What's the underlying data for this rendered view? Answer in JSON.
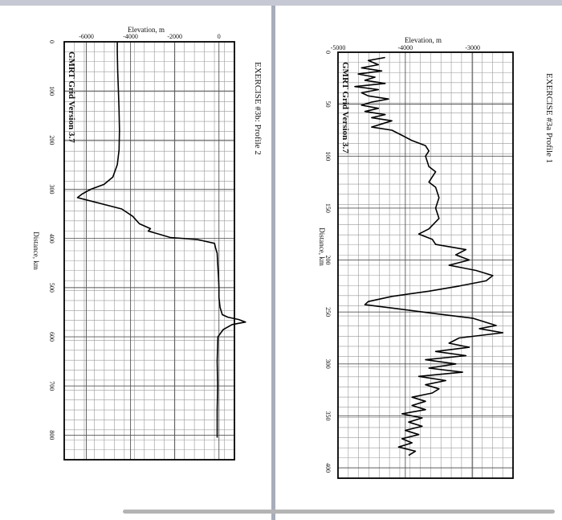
{
  "chart_data": [
    {
      "type": "line",
      "title": "EXERCISE #3b: Profile 2",
      "brand": "GMRT Grid Version 3.7",
      "xlabel": "Distance, km",
      "ylabel": "Elevation, m",
      "xlim": [
        0,
        850
      ],
      "ylim": [
        -7000,
        700
      ],
      "x_ticks": [
        "0",
        "100",
        "200",
        "300",
        "400",
        "500",
        "600",
        "700",
        "800"
      ],
      "y_ticks": [
        "-6000",
        "-4000",
        "-2000",
        "0"
      ],
      "grid": true,
      "series": [
        {
          "x": [
            0,
            20,
            60,
            100,
            140,
            180,
            220,
            250,
            275,
            290,
            300,
            310,
            317,
            325,
            340,
            355,
            370,
            380,
            385,
            390,
            398,
            402,
            410,
            420,
            430,
            450,
            480,
            500,
            520,
            540,
            555,
            560,
            565,
            570,
            575,
            585,
            600,
            650,
            700,
            750,
            805
          ],
          "y": [
            -4600,
            -4600,
            -4580,
            -4550,
            -4520,
            -4500,
            -4520,
            -4600,
            -4800,
            -5200,
            -5800,
            -6200,
            -6400,
            -5700,
            -4400,
            -3900,
            -3600,
            -3100,
            -3200,
            -2800,
            -2200,
            -1000,
            -200,
            -150,
            -80,
            -60,
            -20,
            0,
            0,
            50,
            150,
            400,
            900,
            1200,
            600,
            200,
            -50,
            -80,
            -60,
            -80,
            -80
          ]
        }
      ]
    },
    {
      "type": "line",
      "title": "EXERCISE #3a  Profile 1",
      "brand": "GMRT Grid Version 3.7",
      "xlabel": "Distance, km",
      "ylabel": "Elevation, m",
      "xlim": [
        0,
        410
      ],
      "ylim": [
        -5000,
        -2400
      ],
      "x_ticks": [
        "0",
        "50",
        "100",
        "150",
        "200",
        "250",
        "300",
        "350",
        "400"
      ],
      "y_ticks": [
        "-5000",
        "-4000",
        "-3000"
      ],
      "grid": true,
      "series": [
        {
          "x": [
            5,
            8,
            12,
            15,
            18,
            21,
            24,
            27,
            30,
            33,
            36,
            39,
            42,
            45,
            48,
            51,
            54,
            57,
            60,
            63,
            66,
            69,
            72,
            75,
            80,
            85,
            90,
            95,
            100,
            110,
            115,
            125,
            130,
            140,
            150,
            160,
            170,
            175,
            180,
            185,
            190,
            195,
            200,
            205,
            210,
            215,
            220,
            225,
            230,
            235,
            240,
            243,
            247,
            252,
            256,
            260,
            263,
            266,
            270,
            275,
            280,
            284,
            288,
            292,
            296,
            300,
            304,
            308,
            312,
            316,
            320,
            324,
            328,
            332,
            336,
            340,
            344,
            348,
            352,
            356,
            360,
            364,
            368,
            372,
            376,
            380,
            384,
            388
          ],
          "y": [
            -4300,
            -4550,
            -4400,
            -4650,
            -4350,
            -4700,
            -4450,
            -4600,
            -4300,
            -4750,
            -4400,
            -4650,
            -4550,
            -4250,
            -4500,
            -4650,
            -4400,
            -4600,
            -4300,
            -4500,
            -4200,
            -4350,
            -4500,
            -4200,
            -4050,
            -3900,
            -3700,
            -3650,
            -3700,
            -3650,
            -3550,
            -3650,
            -3550,
            -3500,
            -3550,
            -3500,
            -3650,
            -3800,
            -3600,
            -3550,
            -3100,
            -3250,
            -3050,
            -3350,
            -2950,
            -2700,
            -2800,
            -3200,
            -3650,
            -4200,
            -4550,
            -4600,
            -4100,
            -3500,
            -3000,
            -2800,
            -2650,
            -2900,
            -2550,
            -3200,
            -3350,
            -3050,
            -3550,
            -3100,
            -3700,
            -3250,
            -3650,
            -3150,
            -3800,
            -3400,
            -3700,
            -3500,
            -3600,
            -3900,
            -3700,
            -3900,
            -3700,
            -4050,
            -3750,
            -3950,
            -3750,
            -4000,
            -3800,
            -4050,
            -3900,
            -4100,
            -3850,
            -3950
          ]
        }
      ]
    }
  ]
}
